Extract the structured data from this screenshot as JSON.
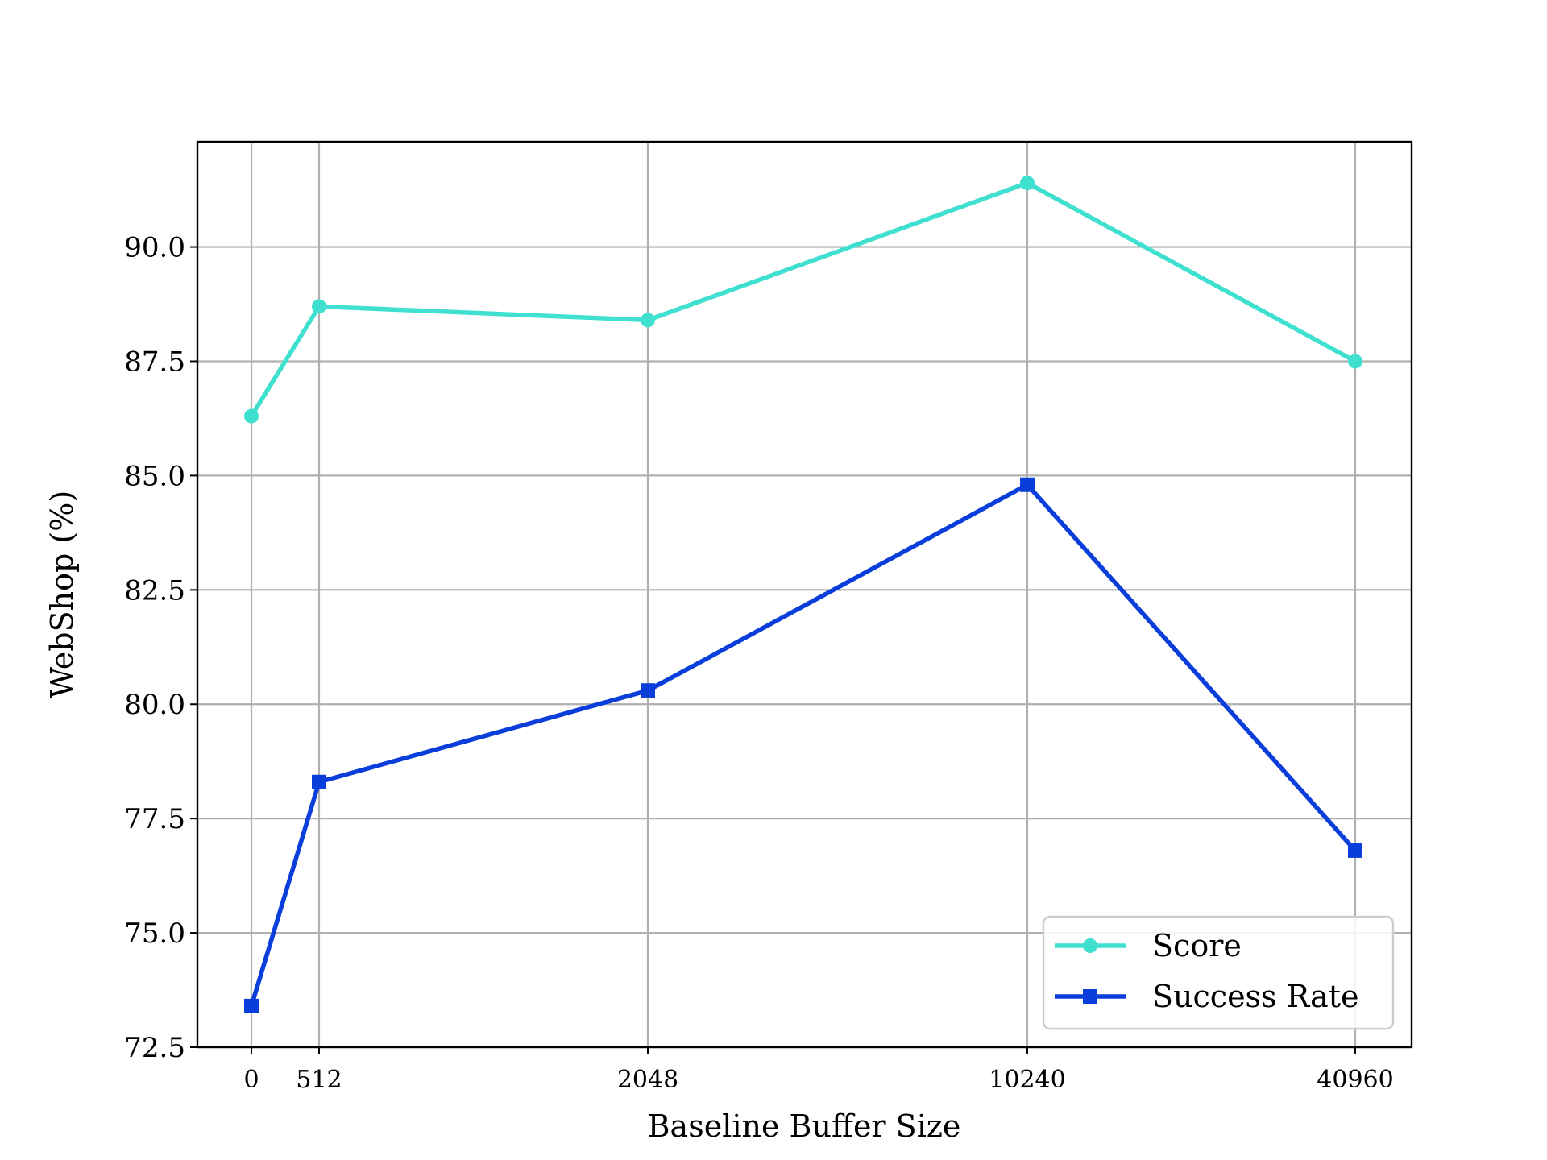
{
  "colors": {
    "score": "#40E0D0",
    "success_rate": "#0A3EDA",
    "grid": "#b0b0b0",
    "axes": "#000000"
  },
  "chart_data": {
    "type": "line",
    "title": "",
    "xlabel": "Baseline Buffer Size",
    "ylabel": "WebShop (%)",
    "x": [
      0,
      512,
      2048,
      10240,
      40960
    ],
    "x_tick_labels": [
      "0",
      "512",
      "2048",
      "10240",
      "40960"
    ],
    "x_scale": "categorical-spaced",
    "y_ticks": [
      72.5,
      75.0,
      77.5,
      80.0,
      82.5,
      85.0,
      87.5,
      90.0
    ],
    "y_tick_labels": [
      "72.5",
      "75.0",
      "77.5",
      "80.0",
      "82.5",
      "85.0",
      "87.5",
      "90.0"
    ],
    "ylim": [
      72.5,
      92.3
    ],
    "grid": true,
    "legend": "lower-right",
    "series": [
      {
        "name": "Score",
        "marker": "circle",
        "color": "#40E0D0",
        "values": [
          86.3,
          88.7,
          88.4,
          91.4,
          87.5
        ]
      },
      {
        "name": "Success Rate",
        "marker": "square",
        "color": "#0A3EDA",
        "values": [
          73.4,
          78.3,
          80.3,
          84.8,
          76.8
        ]
      }
    ]
  }
}
